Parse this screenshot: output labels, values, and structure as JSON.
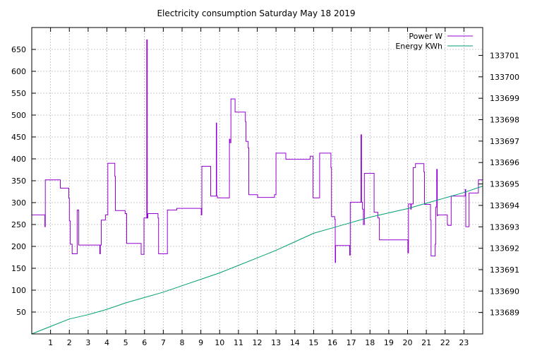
{
  "chart_data": {
    "type": "line",
    "title": "Electricity consumption Saturday May 18 2019",
    "xlabel": "",
    "ylabel": "",
    "xlim": [
      0,
      24
    ],
    "ylim": [
      0,
      700
    ],
    "y2lim": [
      133688,
      133702.3
    ],
    "x_ticks": [
      1,
      2,
      3,
      4,
      5,
      6,
      7,
      8,
      9,
      10,
      11,
      12,
      13,
      14,
      15,
      16,
      17,
      18,
      19,
      20,
      21,
      22,
      23
    ],
    "y_ticks": [
      50,
      100,
      150,
      200,
      250,
      300,
      350,
      400,
      450,
      500,
      550,
      600,
      650
    ],
    "y2_ticks": [
      133689,
      133690,
      133691,
      133692,
      133693,
      133694,
      133695,
      133696,
      133697,
      133698,
      133699,
      133700,
      133701
    ],
    "grid": true,
    "legend_position": "top-right",
    "series": [
      {
        "name": "Power W",
        "color": "#9400d3",
        "axis": "left",
        "step": true,
        "points": [
          [
            0,
            272
          ],
          [
            0.7,
            245
          ],
          [
            0.72,
            352
          ],
          [
            1.5,
            352
          ],
          [
            1.52,
            333
          ],
          [
            1.95,
            333
          ],
          [
            1.97,
            310
          ],
          [
            2.0,
            258
          ],
          [
            2.05,
            205
          ],
          [
            2.15,
            183
          ],
          [
            2.4,
            183
          ],
          [
            2.42,
            283
          ],
          [
            2.48,
            283
          ],
          [
            2.5,
            203
          ],
          [
            3.6,
            203
          ],
          [
            3.62,
            183
          ],
          [
            3.65,
            203
          ],
          [
            3.7,
            260
          ],
          [
            3.9,
            260
          ],
          [
            3.92,
            272
          ],
          [
            4.02,
            272
          ],
          [
            4.05,
            390
          ],
          [
            4.4,
            390
          ],
          [
            4.42,
            360
          ],
          [
            4.45,
            282
          ],
          [
            4.95,
            282
          ],
          [
            4.97,
            275
          ],
          [
            5.02,
            275
          ],
          [
            5.05,
            207
          ],
          [
            5.8,
            207
          ],
          [
            5.82,
            182
          ],
          [
            5.95,
            182
          ],
          [
            5.97,
            265
          ],
          [
            6.1,
            265
          ],
          [
            6.12,
            672
          ],
          [
            6.15,
            265
          ],
          [
            6.18,
            275
          ],
          [
            6.7,
            275
          ],
          [
            6.72,
            265
          ],
          [
            6.75,
            183
          ],
          [
            7.2,
            183
          ],
          [
            7.22,
            283
          ],
          [
            7.7,
            283
          ],
          [
            7.72,
            287
          ],
          [
            9.0,
            287
          ],
          [
            9.02,
            272
          ],
          [
            9.05,
            383
          ],
          [
            9.5,
            383
          ],
          [
            9.52,
            315
          ],
          [
            9.8,
            315
          ],
          [
            9.82,
            482
          ],
          [
            9.84,
            315
          ],
          [
            9.88,
            311
          ],
          [
            10.5,
            311
          ],
          [
            10.52,
            445
          ],
          [
            10.55,
            437
          ],
          [
            10.6,
            537
          ],
          [
            10.8,
            537
          ],
          [
            10.82,
            507
          ],
          [
            11.35,
            507
          ],
          [
            11.37,
            485
          ],
          [
            11.4,
            440
          ],
          [
            11.5,
            440
          ],
          [
            11.52,
            425
          ],
          [
            11.55,
            318
          ],
          [
            12.0,
            318
          ],
          [
            12.02,
            312
          ],
          [
            12.9,
            312
          ],
          [
            12.92,
            318
          ],
          [
            13.0,
            413
          ],
          [
            13.5,
            413
          ],
          [
            13.52,
            399
          ],
          [
            14.8,
            399
          ],
          [
            14.82,
            406
          ],
          [
            14.95,
            406
          ],
          [
            14.97,
            311
          ],
          [
            15.3,
            311
          ],
          [
            15.32,
            413
          ],
          [
            15.9,
            413
          ],
          [
            15.92,
            380
          ],
          [
            15.95,
            268
          ],
          [
            16.1,
            268
          ],
          [
            16.12,
            262
          ],
          [
            16.15,
            163
          ],
          [
            16.17,
            202
          ],
          [
            16.9,
            202
          ],
          [
            16.92,
            180
          ],
          [
            16.95,
            301
          ],
          [
            17.5,
            301
          ],
          [
            17.52,
            455
          ],
          [
            17.55,
            301
          ],
          [
            17.6,
            285
          ],
          [
            17.65,
            250
          ],
          [
            17.7,
            367
          ],
          [
            18.2,
            367
          ],
          [
            18.22,
            278
          ],
          [
            18.4,
            278
          ],
          [
            18.42,
            265
          ],
          [
            18.5,
            215
          ],
          [
            20.0,
            215
          ],
          [
            20.02,
            185
          ],
          [
            20.05,
            297
          ],
          [
            20.15,
            297
          ],
          [
            20.17,
            285
          ],
          [
            20.2,
            297
          ],
          [
            20.3,
            380
          ],
          [
            20.4,
            380
          ],
          [
            20.42,
            389
          ],
          [
            20.85,
            389
          ],
          [
            20.87,
            370
          ],
          [
            20.9,
            296
          ],
          [
            21.2,
            296
          ],
          [
            21.22,
            260
          ],
          [
            21.25,
            178
          ],
          [
            21.45,
            178
          ],
          [
            21.47,
            205
          ],
          [
            21.5,
            290
          ],
          [
            21.55,
            376
          ],
          [
            21.58,
            270
          ],
          [
            21.6,
            272
          ],
          [
            22.1,
            272
          ],
          [
            22.12,
            250
          ],
          [
            22.15,
            248
          ],
          [
            22.3,
            248
          ],
          [
            22.32,
            315
          ],
          [
            23.05,
            315
          ],
          [
            23.07,
            330
          ],
          [
            23.1,
            245
          ],
          [
            23.25,
            245
          ],
          [
            23.27,
            322
          ],
          [
            23.75,
            322
          ],
          [
            23.77,
            352
          ],
          [
            24.0,
            352
          ]
        ]
      },
      {
        "name": "Energy KWh",
        "color": "#009e73",
        "axis": "right",
        "step": false,
        "points": [
          [
            0,
            133688.0
          ],
          [
            1.0,
            133688.35
          ],
          [
            2.0,
            133688.7
          ],
          [
            3.0,
            133688.9
          ],
          [
            4.0,
            133689.15
          ],
          [
            5.0,
            133689.45
          ],
          [
            6.0,
            133689.7
          ],
          [
            7.0,
            133689.95
          ],
          [
            8.0,
            133690.25
          ],
          [
            9.0,
            133690.55
          ],
          [
            10.0,
            133690.85
          ],
          [
            11.0,
            133691.2
          ],
          [
            12.0,
            133691.55
          ],
          [
            13.0,
            133691.9
          ],
          [
            14.0,
            133692.3
          ],
          [
            15.0,
            133692.7
          ],
          [
            16.0,
            133692.95
          ],
          [
            17.0,
            133693.2
          ],
          [
            18.0,
            133693.45
          ],
          [
            19.0,
            133693.65
          ],
          [
            20.0,
            133693.85
          ],
          [
            21.0,
            133694.1
          ],
          [
            22.0,
            133694.35
          ],
          [
            23.0,
            133694.6
          ],
          [
            24.0,
            133694.9
          ]
        ]
      }
    ]
  }
}
